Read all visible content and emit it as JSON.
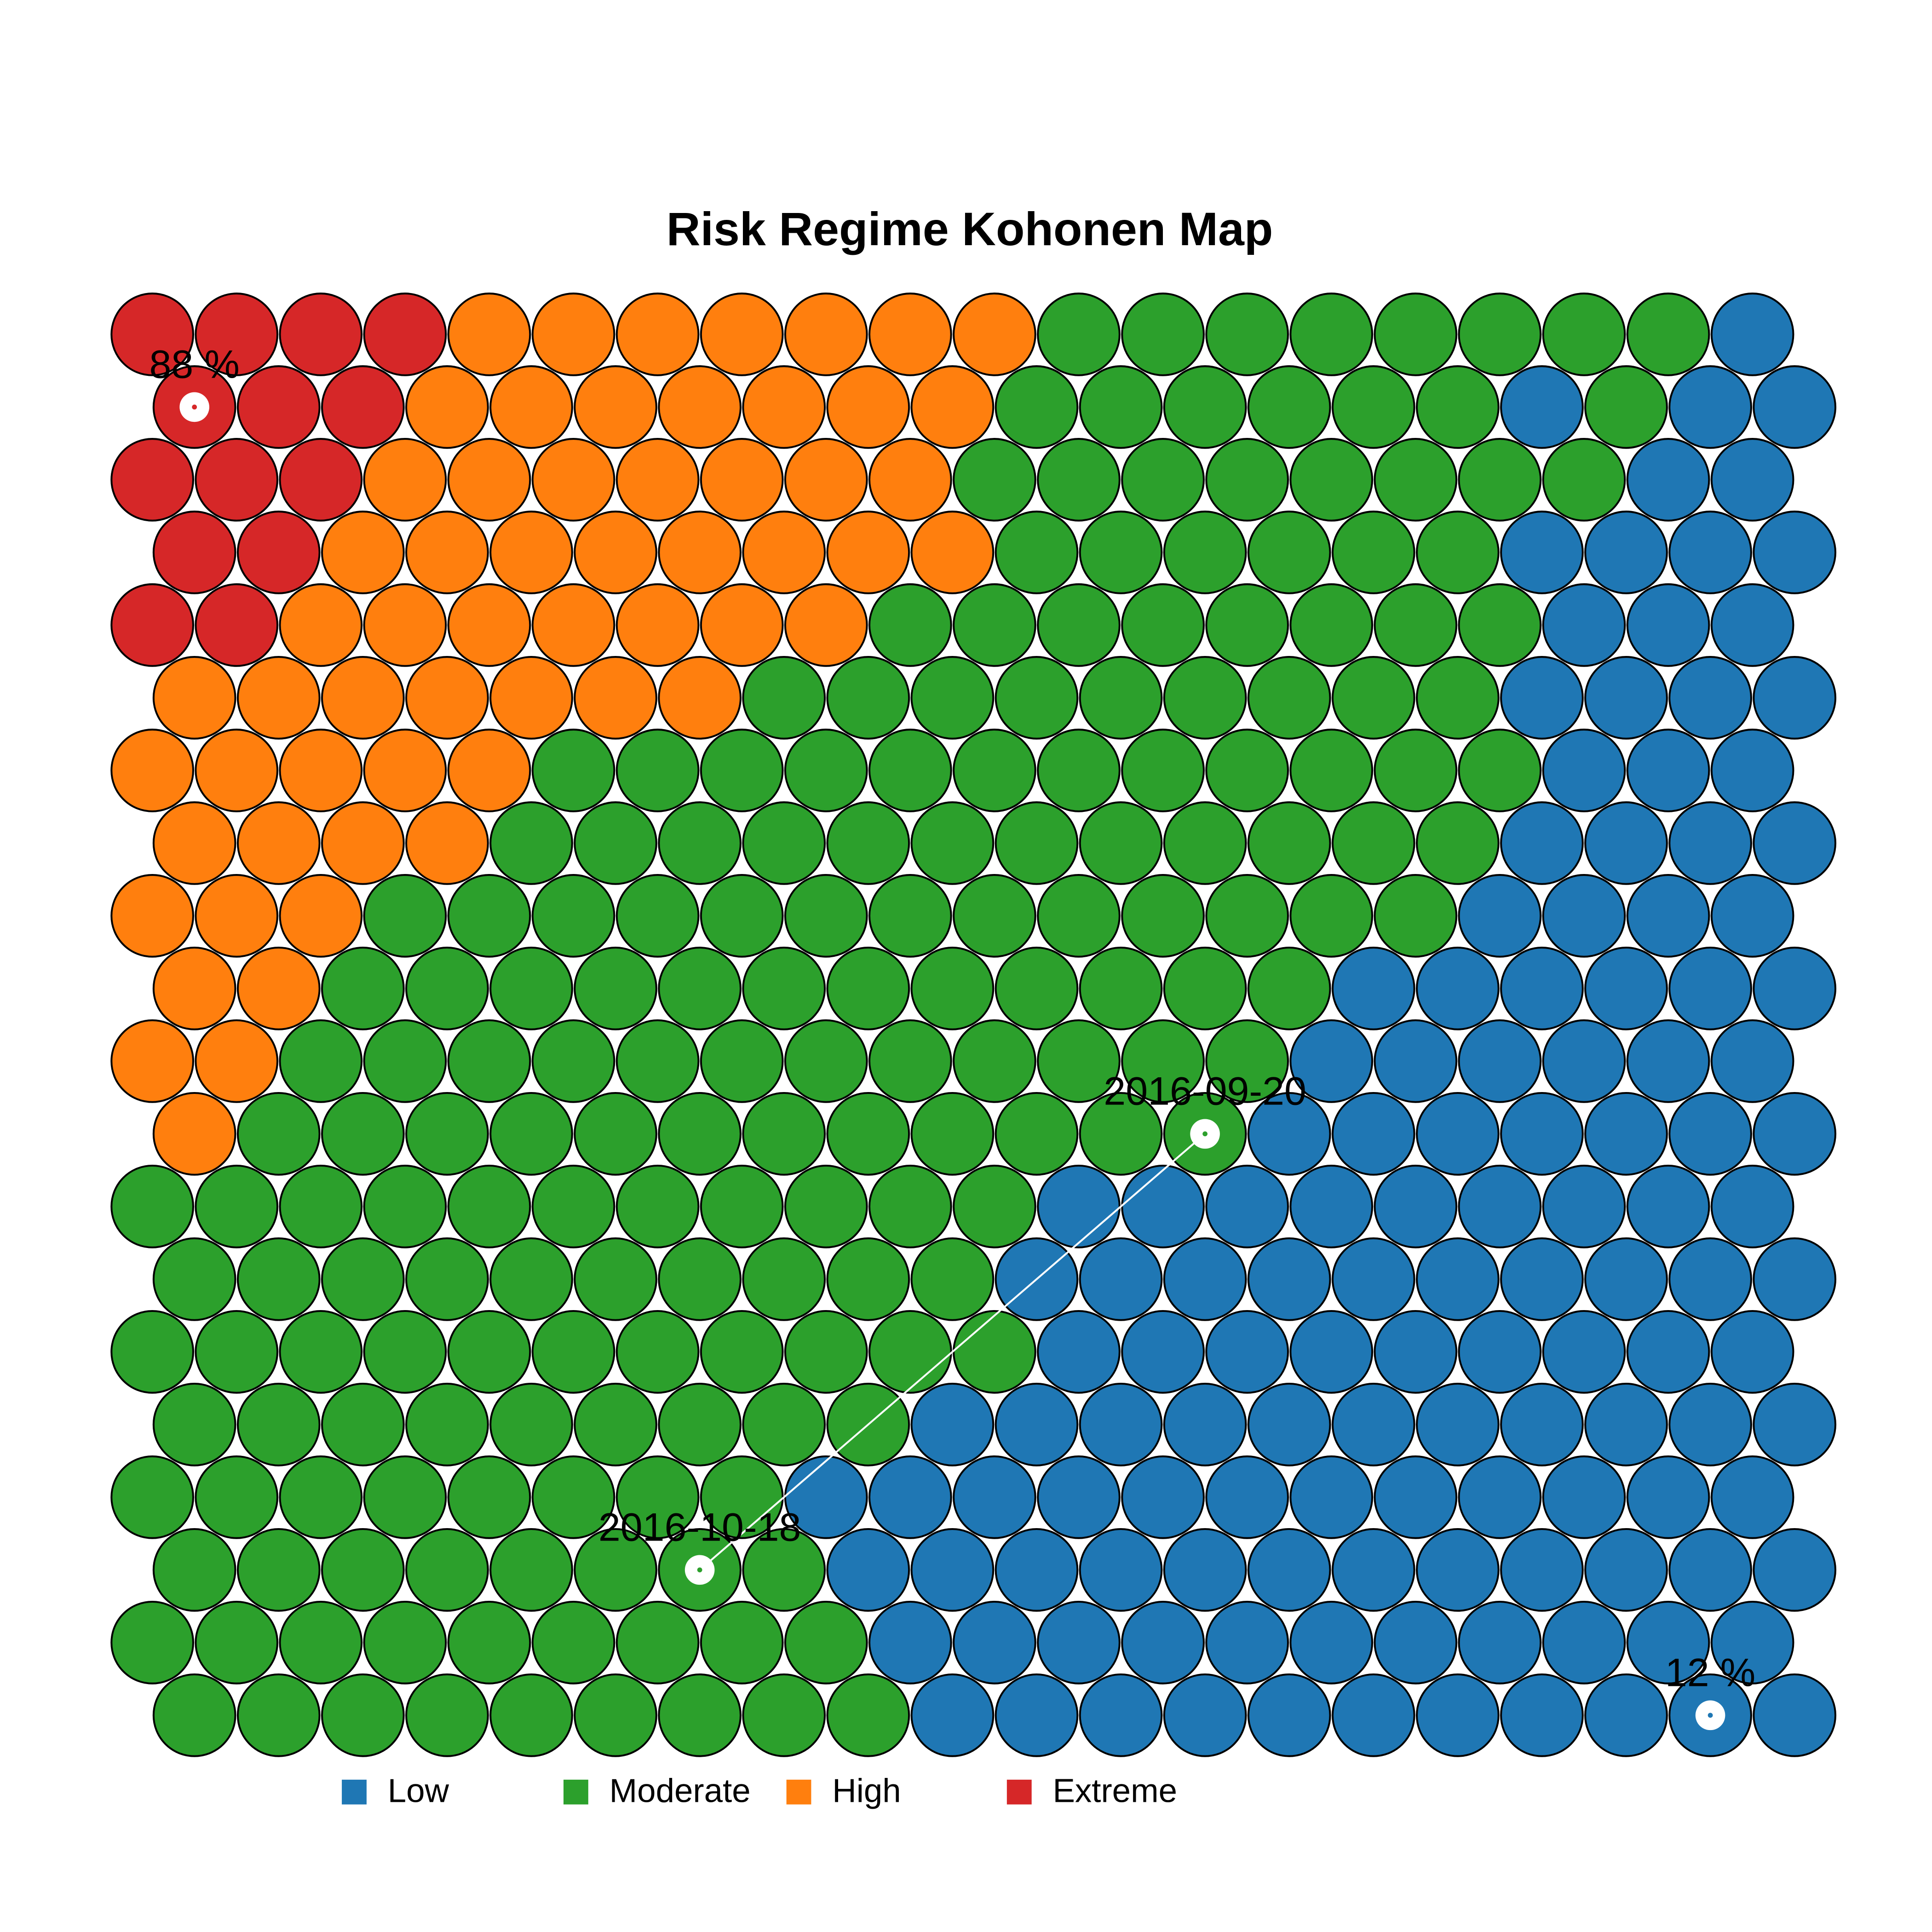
{
  "chart_data": {
    "type": "som",
    "title": "Risk Regime Kohonen Map",
    "legend": [
      {
        "name": "Low",
        "color": "#1f77b4"
      },
      {
        "name": "Moderate",
        "color": "#2ca02c"
      },
      {
        "name": "High",
        "color": "#ff7f0e"
      },
      {
        "name": "Extreme",
        "color": "#d62728"
      }
    ],
    "grid": [
      [
        "Extreme",
        "Extreme",
        "Extreme",
        "Extreme",
        "High",
        "High",
        "High",
        "High",
        "High",
        "High",
        "High",
        "Moderate",
        "Moderate",
        "Moderate",
        "Moderate",
        "Moderate",
        "Moderate",
        "Moderate",
        "Moderate",
        "Low"
      ],
      [
        "Extreme",
        "Extreme",
        "Extreme",
        "High",
        "High",
        "High",
        "High",
        "High",
        "High",
        "High",
        "Moderate",
        "Moderate",
        "Moderate",
        "Moderate",
        "Moderate",
        "Moderate",
        "Low",
        "Moderate",
        "Low",
        "Low"
      ],
      [
        "Extreme",
        "Extreme",
        "Extreme",
        "High",
        "High",
        "High",
        "High",
        "High",
        "High",
        "High",
        "Moderate",
        "Moderate",
        "Moderate",
        "Moderate",
        "Moderate",
        "Moderate",
        "Moderate",
        "Moderate",
        "Low",
        "Low"
      ],
      [
        "Extreme",
        "Extreme",
        "High",
        "High",
        "High",
        "High",
        "High",
        "High",
        "High",
        "High",
        "Moderate",
        "Moderate",
        "Moderate",
        "Moderate",
        "Moderate",
        "Moderate",
        "Low",
        "Low",
        "Low",
        "Low"
      ],
      [
        "Extreme",
        "Extreme",
        "High",
        "High",
        "High",
        "High",
        "High",
        "High",
        "High",
        "Moderate",
        "Moderate",
        "Moderate",
        "Moderate",
        "Moderate",
        "Moderate",
        "Moderate",
        "Moderate",
        "Low",
        "Low",
        "Low"
      ],
      [
        "High",
        "High",
        "High",
        "High",
        "High",
        "High",
        "High",
        "Moderate",
        "Moderate",
        "Moderate",
        "Moderate",
        "Moderate",
        "Moderate",
        "Moderate",
        "Moderate",
        "Moderate",
        "Low",
        "Low",
        "Low",
        "Low"
      ],
      [
        "High",
        "High",
        "High",
        "High",
        "High",
        "Moderate",
        "Moderate",
        "Moderate",
        "Moderate",
        "Moderate",
        "Moderate",
        "Moderate",
        "Moderate",
        "Moderate",
        "Moderate",
        "Moderate",
        "Moderate",
        "Low",
        "Low",
        "Low"
      ],
      [
        "High",
        "High",
        "High",
        "High",
        "Moderate",
        "Moderate",
        "Moderate",
        "Moderate",
        "Moderate",
        "Moderate",
        "Moderate",
        "Moderate",
        "Moderate",
        "Moderate",
        "Moderate",
        "Moderate",
        "Low",
        "Low",
        "Low",
        "Low"
      ],
      [
        "High",
        "High",
        "High",
        "Moderate",
        "Moderate",
        "Moderate",
        "Moderate",
        "Moderate",
        "Moderate",
        "Moderate",
        "Moderate",
        "Moderate",
        "Moderate",
        "Moderate",
        "Moderate",
        "Moderate",
        "Low",
        "Low",
        "Low",
        "Low"
      ],
      [
        "High",
        "High",
        "Moderate",
        "Moderate",
        "Moderate",
        "Moderate",
        "Moderate",
        "Moderate",
        "Moderate",
        "Moderate",
        "Moderate",
        "Moderate",
        "Moderate",
        "Moderate",
        "Low",
        "Low",
        "Low",
        "Low",
        "Low",
        "Low"
      ],
      [
        "High",
        "High",
        "Moderate",
        "Moderate",
        "Moderate",
        "Moderate",
        "Moderate",
        "Moderate",
        "Moderate",
        "Moderate",
        "Moderate",
        "Moderate",
        "Moderate",
        "Moderate",
        "Low",
        "Low",
        "Low",
        "Low",
        "Low",
        "Low"
      ],
      [
        "High",
        "Moderate",
        "Moderate",
        "Moderate",
        "Moderate",
        "Moderate",
        "Moderate",
        "Moderate",
        "Moderate",
        "Moderate",
        "Moderate",
        "Moderate",
        "Moderate",
        "Low",
        "Low",
        "Low",
        "Low",
        "Low",
        "Low",
        "Low"
      ],
      [
        "Moderate",
        "Moderate",
        "Moderate",
        "Moderate",
        "Moderate",
        "Moderate",
        "Moderate",
        "Moderate",
        "Moderate",
        "Moderate",
        "Moderate",
        "Low",
        "Low",
        "Low",
        "Low",
        "Low",
        "Low",
        "Low",
        "Low",
        "Low"
      ],
      [
        "Moderate",
        "Moderate",
        "Moderate",
        "Moderate",
        "Moderate",
        "Moderate",
        "Moderate",
        "Moderate",
        "Moderate",
        "Moderate",
        "Low",
        "Low",
        "Low",
        "Low",
        "Low",
        "Low",
        "Low",
        "Low",
        "Low",
        "Low"
      ],
      [
        "Moderate",
        "Moderate",
        "Moderate",
        "Moderate",
        "Moderate",
        "Moderate",
        "Moderate",
        "Moderate",
        "Moderate",
        "Moderate",
        "Moderate",
        "Low",
        "Low",
        "Low",
        "Low",
        "Low",
        "Low",
        "Low",
        "Low",
        "Low"
      ],
      [
        "Moderate",
        "Moderate",
        "Moderate",
        "Moderate",
        "Moderate",
        "Moderate",
        "Moderate",
        "Moderate",
        "Moderate",
        "Low",
        "Low",
        "Low",
        "Low",
        "Low",
        "Low",
        "Low",
        "Low",
        "Low",
        "Low",
        "Low"
      ],
      [
        "Moderate",
        "Moderate",
        "Moderate",
        "Moderate",
        "Moderate",
        "Moderate",
        "Moderate",
        "Moderate",
        "Low",
        "Low",
        "Low",
        "Low",
        "Low",
        "Low",
        "Low",
        "Low",
        "Low",
        "Low",
        "Low",
        "Low"
      ],
      [
        "Moderate",
        "Moderate",
        "Moderate",
        "Moderate",
        "Moderate",
        "Moderate",
        "Moderate",
        "Moderate",
        "Low",
        "Low",
        "Low",
        "Low",
        "Low",
        "Low",
        "Low",
        "Low",
        "Low",
        "Low",
        "Low",
        "Low"
      ],
      [
        "Moderate",
        "Moderate",
        "Moderate",
        "Moderate",
        "Moderate",
        "Moderate",
        "Moderate",
        "Moderate",
        "Moderate",
        "Low",
        "Low",
        "Low",
        "Low",
        "Low",
        "Low",
        "Low",
        "Low",
        "Low",
        "Low",
        "Low"
      ],
      [
        "Moderate",
        "Moderate",
        "Moderate",
        "Moderate",
        "Moderate",
        "Moderate",
        "Moderate",
        "Moderate",
        "Moderate",
        "Low",
        "Low",
        "Low",
        "Low",
        "Low",
        "Low",
        "Low",
        "Low",
        "Low",
        "Low",
        "Low"
      ]
    ],
    "extremes": [
      {
        "value": 88,
        "label": "88 %",
        "cell": [
          1,
          0
        ]
      },
      {
        "value": 12,
        "label": "12 %",
        "cell": [
          19,
          18
        ]
      }
    ],
    "trajectory": [
      {
        "label": "2016-09-20",
        "cell": [
          11,
          12
        ]
      },
      {
        "label": "2016-10-18",
        "cell": [
          17,
          6
        ]
      }
    ]
  }
}
